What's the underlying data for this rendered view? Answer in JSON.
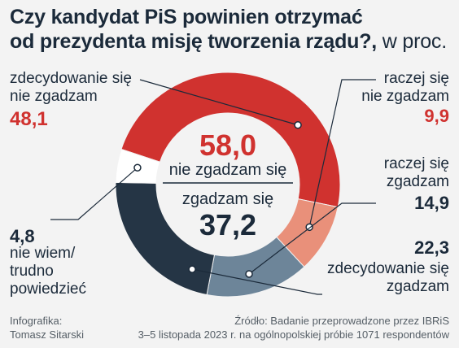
{
  "title": {
    "line1": "Czy  kandydat PiS powinien otrzymać",
    "line2": "od prezydenta misję tworzenia rządu?,",
    "unit": " w proc."
  },
  "colors": {
    "red": "#d0322f",
    "salmon": "#e9907a",
    "slate": "#6d8599",
    "navy": "#253545",
    "white": "#ffffff",
    "text": "#1b2a3a"
  },
  "chart_data": {
    "type": "pie",
    "title": "Czy  kandydat PiS powinien otrzymać od prezydenta misję tworzenia rządu?, w proc.",
    "slices": [
      {
        "label_line1": "zdecydowanie się",
        "label_line2": "nie zgadzam",
        "value": 48.1,
        "value_text": "48,1",
        "color": "#d0322f"
      },
      {
        "label_line1": "raczej się",
        "label_line2": "nie zgadzam",
        "value": 9.9,
        "value_text": "9,9",
        "color": "#e9907a"
      },
      {
        "label_line1": "raczej się",
        "label_line2": "zgadzam",
        "value": 14.9,
        "value_text": "14,9",
        "color": "#6d8599"
      },
      {
        "label_line1": "zdecydowanie się",
        "label_line2": "zgadzam",
        "value": 22.3,
        "value_text": "22,3",
        "color": "#253545"
      },
      {
        "label_line1": "nie wiem/",
        "label_line2": "trudno",
        "label_line3": "powiedzieć",
        "value": 4.8,
        "value_text": "4,8",
        "color": "#ffffff"
      }
    ],
    "center": {
      "disagree_value": "58,0",
      "disagree_label": "nie zgadzam się",
      "agree_label": "zgadzam się",
      "agree_value": "37,2"
    }
  },
  "footer": {
    "credit_line1": "Infografika:",
    "credit_line2": "Tomasz Sitarski",
    "source_line1": "Źródło: Badanie przeprowadzone przez IBRiS",
    "source_line2": "3–5 listopada 2023 r. na ogólnopolskiej próbie 1071 respondentów"
  }
}
